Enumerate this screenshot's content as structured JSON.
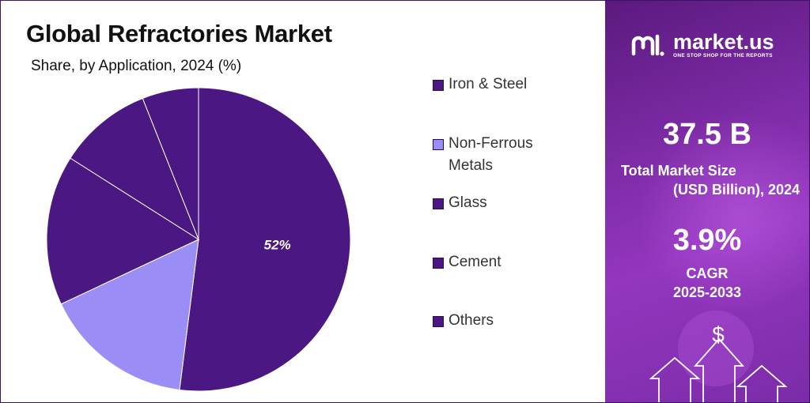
{
  "title": "Global Refractories Market",
  "subtitle": "Share, by Application, 2024 (%)",
  "chart_data": {
    "type": "pie",
    "title": "Global Refractories Market",
    "subtitle": "Share, by Application, 2024 (%)",
    "legend_position": "right",
    "slices": [
      {
        "label": "Iron & Steel",
        "value": 52,
        "color": "#4b1782",
        "data_label": "52%"
      },
      {
        "label": "Non-Ferrous Metals",
        "value": 16,
        "color": "#9a8ef6",
        "data_label": ""
      },
      {
        "label": "Glass",
        "value": 16,
        "color": "#4b1782",
        "data_label": ""
      },
      {
        "label": "Cement",
        "value": 10,
        "color": "#4b1782",
        "data_label": ""
      },
      {
        "label": "Others",
        "value": 6,
        "color": "#4b1782",
        "data_label": ""
      }
    ]
  },
  "legend": [
    {
      "label": "Iron & Steel",
      "color": "#4b1782"
    },
    {
      "label": "Non-Ferrous Metals",
      "color": "#9a8ef6"
    },
    {
      "label": "Glass",
      "color": "#4b1782"
    },
    {
      "label": "Cement",
      "color": "#4b1782"
    },
    {
      "label": "Others",
      "color": "#4b1782"
    }
  ],
  "sidebar": {
    "brand": "market.us",
    "tagline": "ONE STOP SHOP FOR THE REPORTS",
    "market_size_value": "37.5 B",
    "market_size_label_1": "Total Market Size",
    "market_size_label_2": "(USD Billion), 2024",
    "cagr_value": "3.9%",
    "cagr_label": "CAGR",
    "cagr_period": "2025-2033",
    "dollar_symbol": "$",
    "background_color": "#7d2ba6"
  }
}
